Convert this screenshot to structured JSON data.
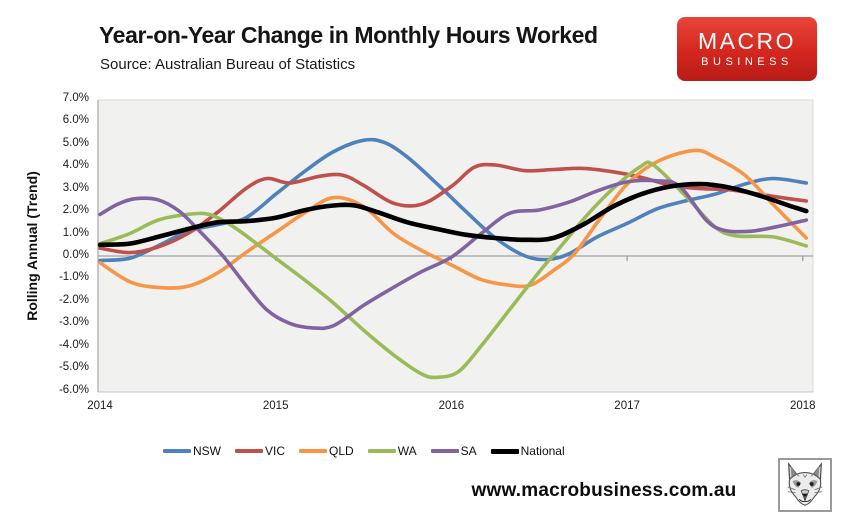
{
  "header": {
    "title": "Year-on-Year Change in Monthly Hours Worked",
    "subtitle": "Source: Australian Bureau of Statistics",
    "logo": {
      "line1": "MACRO",
      "line2": "BUSINESS",
      "bg_color": "#d3271f",
      "text_color": "#ffffff"
    }
  },
  "footer": {
    "website": "www.macrobusiness.com.au",
    "fox_icon": "fox-face-sketch"
  },
  "chart_data": {
    "type": "line",
    "title": "Year-on-Year Change in Monthly Hours Worked",
    "xlabel": "",
    "ylabel": "Rolling Annual (Trend)",
    "ylim": [
      -6,
      7
    ],
    "xlim": [
      2014,
      2018.07
    ],
    "grid": "off",
    "plot_bg": "#f1f1f0",
    "zero_axis_color": "#8f8f8f",
    "legend_position": "bottom",
    "x_ticks": [
      2014,
      2015,
      2016,
      2017,
      2018
    ],
    "x_tick_labels": [
      "2014",
      "2015",
      "2016",
      "2017",
      "2018"
    ],
    "y_ticks": [
      7,
      6,
      5,
      4,
      3,
      2,
      1,
      0,
      -1,
      -2,
      -3,
      -4,
      -5,
      -6
    ],
    "y_tick_labels": [
      "7.0%",
      "6.0%",
      "5.0%",
      "4.0%",
      "3.0%",
      "2.0%",
      "1.0%",
      "0.0%",
      "-1.0%",
      "-2.0%",
      "-3.0%",
      "-4.0%",
      "-5.0%",
      "-6.0%"
    ],
    "series": [
      {
        "name": "NSW",
        "color": "#4F81BD",
        "width": 3.6,
        "points": [
          [
            2014.0,
            -0.2
          ],
          [
            2014.17,
            -0.1
          ],
          [
            2014.33,
            0.45
          ],
          [
            2014.5,
            1.1
          ],
          [
            2014.67,
            1.4
          ],
          [
            2014.83,
            1.7
          ],
          [
            2015.0,
            2.75
          ],
          [
            2015.17,
            3.8
          ],
          [
            2015.33,
            4.65
          ],
          [
            2015.5,
            5.15
          ],
          [
            2015.62,
            5.05
          ],
          [
            2015.75,
            4.4
          ],
          [
            2015.92,
            3.2
          ],
          [
            2016.08,
            2.0
          ],
          [
            2016.25,
            0.8
          ],
          [
            2016.42,
            0.0
          ],
          [
            2016.55,
            -0.15
          ],
          [
            2016.67,
            0.1
          ],
          [
            2016.83,
            0.85
          ],
          [
            2017.0,
            1.45
          ],
          [
            2017.17,
            2.1
          ],
          [
            2017.33,
            2.45
          ],
          [
            2017.5,
            2.75
          ],
          [
            2017.67,
            3.2
          ],
          [
            2017.83,
            3.45
          ],
          [
            2018.02,
            3.25
          ]
        ]
      },
      {
        "name": "VIC",
        "color": "#C0504D",
        "width": 3.6,
        "points": [
          [
            2014.0,
            0.35
          ],
          [
            2014.17,
            0.15
          ],
          [
            2014.33,
            0.4
          ],
          [
            2014.5,
            1.0
          ],
          [
            2014.67,
            1.95
          ],
          [
            2014.83,
            3.0
          ],
          [
            2014.95,
            3.45
          ],
          [
            2015.08,
            3.25
          ],
          [
            2015.25,
            3.55
          ],
          [
            2015.38,
            3.6
          ],
          [
            2015.5,
            3.15
          ],
          [
            2015.67,
            2.35
          ],
          [
            2015.83,
            2.3
          ],
          [
            2016.0,
            3.1
          ],
          [
            2016.13,
            3.95
          ],
          [
            2016.25,
            4.05
          ],
          [
            2016.42,
            3.8
          ],
          [
            2016.58,
            3.85
          ],
          [
            2016.75,
            3.9
          ],
          [
            2016.92,
            3.75
          ],
          [
            2017.08,
            3.5
          ],
          [
            2017.25,
            3.15
          ],
          [
            2017.42,
            3.0
          ],
          [
            2017.58,
            2.95
          ],
          [
            2017.75,
            2.75
          ],
          [
            2017.92,
            2.55
          ],
          [
            2018.02,
            2.45
          ]
        ]
      },
      {
        "name": "QLD",
        "color": "#F79646",
        "width": 3.6,
        "points": [
          [
            2014.0,
            -0.3
          ],
          [
            2014.17,
            -1.15
          ],
          [
            2014.33,
            -1.4
          ],
          [
            2014.5,
            -1.35
          ],
          [
            2014.67,
            -0.75
          ],
          [
            2014.83,
            0.15
          ],
          [
            2015.0,
            1.05
          ],
          [
            2015.17,
            1.95
          ],
          [
            2015.33,
            2.6
          ],
          [
            2015.5,
            2.2
          ],
          [
            2015.67,
            1.0
          ],
          [
            2015.83,
            0.25
          ],
          [
            2016.0,
            -0.4
          ],
          [
            2016.17,
            -1.05
          ],
          [
            2016.33,
            -1.3
          ],
          [
            2016.45,
            -1.3
          ],
          [
            2016.58,
            -0.65
          ],
          [
            2016.7,
            0.1
          ],
          [
            2016.84,
            1.6
          ],
          [
            2017.0,
            3.2
          ],
          [
            2017.17,
            4.2
          ],
          [
            2017.38,
            4.7
          ],
          [
            2017.5,
            4.4
          ],
          [
            2017.67,
            3.6
          ],
          [
            2017.83,
            2.3
          ],
          [
            2018.02,
            0.8
          ]
        ]
      },
      {
        "name": "WA",
        "color": "#9BBB59",
        "width": 3.6,
        "points": [
          [
            2014.0,
            0.55
          ],
          [
            2014.17,
            1.0
          ],
          [
            2014.33,
            1.6
          ],
          [
            2014.5,
            1.85
          ],
          [
            2014.62,
            1.85
          ],
          [
            2014.75,
            1.35
          ],
          [
            2014.9,
            0.5
          ],
          [
            2015.0,
            -0.1
          ],
          [
            2015.17,
            -1.1
          ],
          [
            2015.33,
            -2.1
          ],
          [
            2015.5,
            -3.3
          ],
          [
            2015.67,
            -4.4
          ],
          [
            2015.83,
            -5.25
          ],
          [
            2015.92,
            -5.4
          ],
          [
            2016.04,
            -5.15
          ],
          [
            2016.17,
            -4.0
          ],
          [
            2016.33,
            -2.4
          ],
          [
            2016.5,
            -0.7
          ],
          [
            2016.62,
            0.4
          ],
          [
            2016.77,
            1.8
          ],
          [
            2016.92,
            3.0
          ],
          [
            2017.08,
            4.0
          ],
          [
            2017.15,
            4.05
          ],
          [
            2017.33,
            2.7
          ],
          [
            2017.5,
            1.3
          ],
          [
            2017.62,
            0.9
          ],
          [
            2017.83,
            0.85
          ],
          [
            2018.02,
            0.45
          ]
        ]
      },
      {
        "name": "SA",
        "color": "#8064A2",
        "width": 3.6,
        "points": [
          [
            2014.0,
            1.85
          ],
          [
            2014.1,
            2.3
          ],
          [
            2014.2,
            2.55
          ],
          [
            2014.33,
            2.5
          ],
          [
            2014.45,
            2.0
          ],
          [
            2014.58,
            1.0
          ],
          [
            2014.7,
            0.0
          ],
          [
            2014.83,
            -1.3
          ],
          [
            2014.95,
            -2.4
          ],
          [
            2015.08,
            -3.0
          ],
          [
            2015.21,
            -3.2
          ],
          [
            2015.33,
            -3.1
          ],
          [
            2015.5,
            -2.2
          ],
          [
            2015.67,
            -1.4
          ],
          [
            2015.83,
            -0.7
          ],
          [
            2016.0,
            -0.05
          ],
          [
            2016.17,
            1.0
          ],
          [
            2016.33,
            1.9
          ],
          [
            2016.5,
            2.05
          ],
          [
            2016.67,
            2.4
          ],
          [
            2016.83,
            2.9
          ],
          [
            2017.0,
            3.3
          ],
          [
            2017.17,
            3.35
          ],
          [
            2017.3,
            3.1
          ],
          [
            2017.45,
            1.6
          ],
          [
            2017.55,
            1.15
          ],
          [
            2017.7,
            1.1
          ],
          [
            2017.85,
            1.3
          ],
          [
            2018.02,
            1.6
          ]
        ]
      },
      {
        "name": "National",
        "color": "#000000",
        "width": 4.6,
        "points": [
          [
            2014.0,
            0.5
          ],
          [
            2014.17,
            0.55
          ],
          [
            2014.33,
            0.85
          ],
          [
            2014.5,
            1.2
          ],
          [
            2014.67,
            1.5
          ],
          [
            2014.83,
            1.55
          ],
          [
            2015.0,
            1.7
          ],
          [
            2015.17,
            2.05
          ],
          [
            2015.33,
            2.25
          ],
          [
            2015.45,
            2.25
          ],
          [
            2015.58,
            1.95
          ],
          [
            2015.75,
            1.5
          ],
          [
            2015.92,
            1.2
          ],
          [
            2016.08,
            0.95
          ],
          [
            2016.25,
            0.8
          ],
          [
            2016.42,
            0.72
          ],
          [
            2016.58,
            0.8
          ],
          [
            2016.75,
            1.4
          ],
          [
            2016.92,
            2.2
          ],
          [
            2017.08,
            2.75
          ],
          [
            2017.25,
            3.1
          ],
          [
            2017.42,
            3.2
          ],
          [
            2017.58,
            3.05
          ],
          [
            2017.75,
            2.7
          ],
          [
            2017.92,
            2.25
          ],
          [
            2018.02,
            2.0
          ]
        ]
      }
    ]
  }
}
